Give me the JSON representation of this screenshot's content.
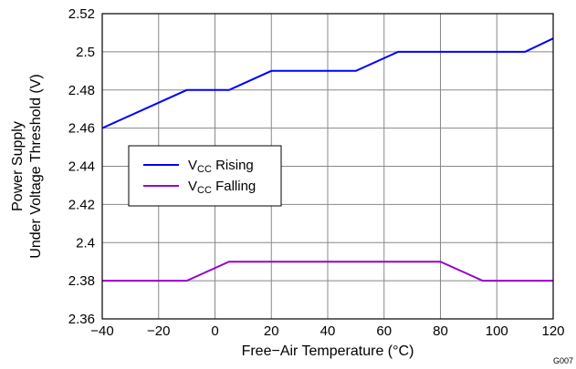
{
  "chart_data": {
    "type": "line",
    "xlabel": "Free−Air Temperature (°C)",
    "ylabel_lines": [
      "Power Supply",
      "Under Voltage Threshold (V)"
    ],
    "xlim": [
      -40,
      120
    ],
    "ylim": [
      2.36,
      2.52
    ],
    "x_ticks": [
      -40,
      -20,
      0,
      20,
      40,
      60,
      80,
      100,
      120
    ],
    "x_tick_labels": [
      "−40",
      "−20",
      "0",
      "20",
      "40",
      "60",
      "80",
      "100",
      "120"
    ],
    "y_ticks": [
      2.36,
      2.38,
      2.4,
      2.42,
      2.44,
      2.46,
      2.48,
      2.5,
      2.52
    ],
    "y_tick_labels": [
      "2.36",
      "2.38",
      "2.4",
      "2.42",
      "2.44",
      "2.46",
      "2.48",
      "2.5",
      "2.52"
    ],
    "grid": true,
    "legend_position": "left-middle",
    "figure_id": "G007",
    "series": [
      {
        "name_main": "V",
        "name_sub": "CC",
        "name_rest": " Rising",
        "color": "#0000ff",
        "x": [
          -40,
          -10,
          5,
          20,
          50,
          65,
          80,
          110,
          120
        ],
        "y": [
          2.46,
          2.48,
          2.48,
          2.49,
          2.49,
          2.5,
          2.5,
          2.5,
          2.507
        ]
      },
      {
        "name_main": "V",
        "name_sub": "CC",
        "name_rest": " Falling",
        "color": "#9900cc",
        "x": [
          -40,
          -10,
          5,
          80,
          95,
          120
        ],
        "y": [
          2.38,
          2.38,
          2.39,
          2.39,
          2.38,
          2.38
        ]
      }
    ]
  }
}
